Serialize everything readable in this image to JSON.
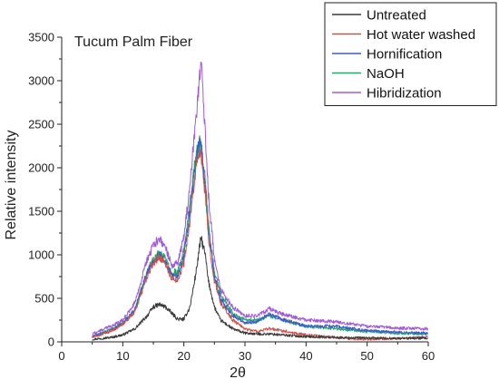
{
  "chart_data": {
    "type": "line",
    "title": "Tucum Palm Fiber",
    "xlabel": "2θ",
    "ylabel": "Relative intensity",
    "xlim": [
      0,
      60
    ],
    "ylim": [
      0,
      3500
    ],
    "xticks": [
      0,
      10,
      20,
      30,
      40,
      50,
      60
    ],
    "yticks": [
      0,
      500,
      1000,
      1500,
      2000,
      2500,
      3000,
      3500
    ],
    "grid": false,
    "legend_position": "top-right",
    "series": [
      {
        "name": "Untreated",
        "color": "#3a3a3a",
        "points": [
          [
            5,
            30
          ],
          [
            8,
            50
          ],
          [
            10,
            80
          ],
          [
            12,
            150
          ],
          [
            14,
            300
          ],
          [
            15,
            400
          ],
          [
            16,
            430
          ],
          [
            17,
            400
          ],
          [
            18,
            330
          ],
          [
            19,
            260
          ],
          [
            20,
            260
          ],
          [
            21,
            400
          ],
          [
            22,
            800
          ],
          [
            22.8,
            1200
          ],
          [
            23.5,
            1000
          ],
          [
            24,
            700
          ],
          [
            25,
            400
          ],
          [
            26,
            250
          ],
          [
            28,
            150
          ],
          [
            30,
            100
          ],
          [
            32,
            90
          ],
          [
            34,
            90
          ],
          [
            36,
            80
          ],
          [
            40,
            60
          ],
          [
            45,
            50
          ],
          [
            50,
            45
          ],
          [
            55,
            40
          ],
          [
            60,
            40
          ]
        ]
      },
      {
        "name": "Hot water washed",
        "color": "#c8524c",
        "points": [
          [
            5,
            50
          ],
          [
            8,
            120
          ],
          [
            10,
            200
          ],
          [
            12,
            350
          ],
          [
            14,
            750
          ],
          [
            15,
            900
          ],
          [
            16,
            980
          ],
          [
            17,
            900
          ],
          [
            18,
            720
          ],
          [
            19,
            720
          ],
          [
            20,
            900
          ],
          [
            21,
            1400
          ],
          [
            22,
            2000
          ],
          [
            22.7,
            2200
          ],
          [
            23.5,
            1700
          ],
          [
            24,
            1200
          ],
          [
            25,
            700
          ],
          [
            26,
            450
          ],
          [
            28,
            250
          ],
          [
            30,
            150
          ],
          [
            32,
            120
          ],
          [
            34,
            150
          ],
          [
            36,
            130
          ],
          [
            40,
            80
          ],
          [
            45,
            50
          ],
          [
            48,
            30
          ],
          [
            50,
            30
          ],
          [
            55,
            40
          ],
          [
            60,
            60
          ]
        ]
      },
      {
        "name": "Hornification",
        "color": "#3a5fc8",
        "points": [
          [
            5,
            60
          ],
          [
            8,
            130
          ],
          [
            10,
            210
          ],
          [
            12,
            370
          ],
          [
            14,
            800
          ],
          [
            15,
            930
          ],
          [
            16,
            1000
          ],
          [
            17,
            920
          ],
          [
            18,
            760
          ],
          [
            19,
            760
          ],
          [
            20,
            980
          ],
          [
            21,
            1500
          ],
          [
            22,
            2100
          ],
          [
            22.7,
            2350
          ],
          [
            23.5,
            1800
          ],
          [
            24,
            1300
          ],
          [
            25,
            750
          ],
          [
            26,
            500
          ],
          [
            28,
            300
          ],
          [
            30,
            220
          ],
          [
            32,
            230
          ],
          [
            34,
            320
          ],
          [
            36,
            260
          ],
          [
            40,
            180
          ],
          [
            45,
            180
          ],
          [
            50,
            130
          ],
          [
            55,
            110
          ],
          [
            60,
            100
          ]
        ]
      },
      {
        "name": "NaOH",
        "color": "#2aa36a",
        "points": [
          [
            5,
            60
          ],
          [
            8,
            140
          ],
          [
            10,
            220
          ],
          [
            12,
            380
          ],
          [
            14,
            820
          ],
          [
            15,
            950
          ],
          [
            16,
            1020
          ],
          [
            17,
            950
          ],
          [
            18,
            800
          ],
          [
            19,
            800
          ],
          [
            20,
            1050
          ],
          [
            21,
            1600
          ],
          [
            22,
            2150
          ],
          [
            22.7,
            2300
          ],
          [
            23.5,
            1850
          ],
          [
            24,
            1350
          ],
          [
            25,
            800
          ],
          [
            26,
            550
          ],
          [
            28,
            330
          ],
          [
            30,
            250
          ],
          [
            32,
            250
          ],
          [
            34,
            300
          ],
          [
            36,
            250
          ],
          [
            40,
            180
          ],
          [
            45,
            150
          ],
          [
            50,
            120
          ],
          [
            55,
            100
          ],
          [
            60,
            90
          ]
        ]
      },
      {
        "name": "Hibridization",
        "color": "#a25ad8",
        "points": [
          [
            5,
            90
          ],
          [
            8,
            180
          ],
          [
            10,
            250
          ],
          [
            12,
            450
          ],
          [
            14,
            950
          ],
          [
            15,
            1100
          ],
          [
            16,
            1200
          ],
          [
            17,
            1080
          ],
          [
            18,
            880
          ],
          [
            19,
            900
          ],
          [
            20,
            1200
          ],
          [
            21,
            1800
          ],
          [
            22,
            2600
          ],
          [
            22.8,
            3250
          ],
          [
            23.5,
            2400
          ],
          [
            24,
            1700
          ],
          [
            25,
            950
          ],
          [
            26,
            600
          ],
          [
            28,
            400
          ],
          [
            30,
            300
          ],
          [
            32,
            300
          ],
          [
            34,
            380
          ],
          [
            36,
            320
          ],
          [
            40,
            250
          ],
          [
            45,
            230
          ],
          [
            50,
            180
          ],
          [
            55,
            160
          ],
          [
            60,
            150
          ]
        ]
      }
    ]
  }
}
